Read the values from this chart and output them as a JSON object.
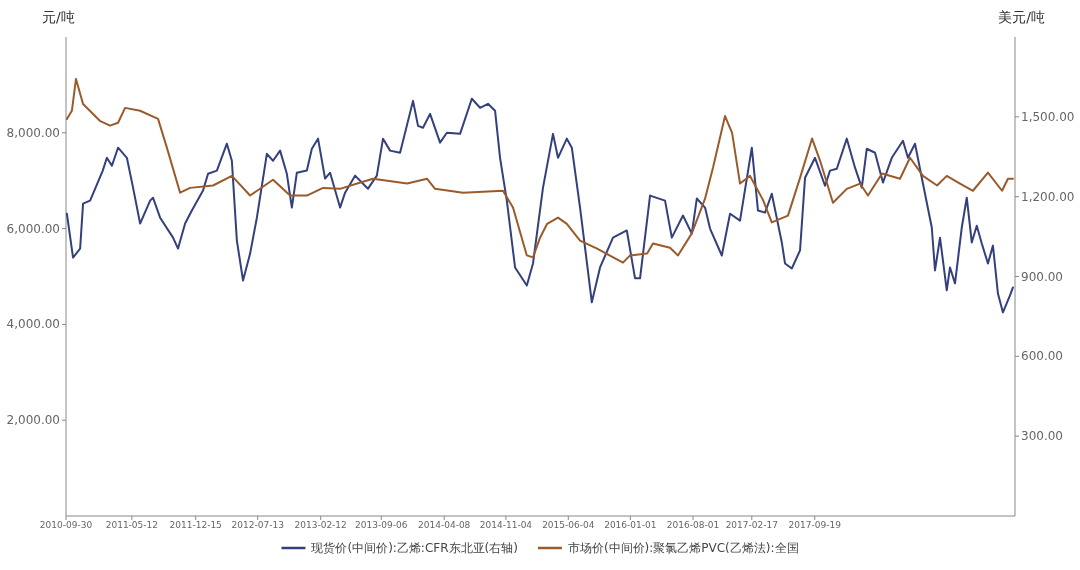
{
  "chart_data": {
    "type": "line",
    "ylabel": "元/吨",
    "y2label": "美元/吨",
    "xlim": [
      "2010-09-30",
      "2019-08-01"
    ],
    "ylim": [
      0,
      10000
    ],
    "y2lim": [
      0,
      1800
    ],
    "xticks": [
      "2010-09-30",
      "2011-05-12",
      "2011-12-15",
      "2012-07-13",
      "2013-02-12",
      "2013-09-06",
      "2014-04-08",
      "2014-11-04",
      "2015-06-04",
      "2016-01-01",
      "2016-08-01",
      "2017-02-17",
      "2017-09-19"
    ],
    "yticks": [
      {
        "value": 2000,
        "label": "2,000.00"
      },
      {
        "value": 4000,
        "label": "4,000.00"
      },
      {
        "value": 6000,
        "label": "6,000.00"
      },
      {
        "value": 8000,
        "label": "8,000.00"
      }
    ],
    "y2ticks": [
      {
        "value": 300,
        "label": "300.00"
      },
      {
        "value": 600,
        "label": "600.00"
      },
      {
        "value": 900,
        "label": "900.00"
      },
      {
        "value": 1200,
        "label": "1,200.00"
      },
      {
        "value": 1500,
        "label": "1,500.00"
      }
    ],
    "legend": "bottom",
    "series": [
      {
        "name": "现货价(中间价):乙烯:CFR东北亚(右轴)",
        "color": "#34407d",
        "axis": "y2",
        "x": [
          "2010-10-03",
          "2010-10-24",
          "2010-11-17",
          "2010-11-27",
          "2010-12-21",
          "2011-02-02",
          "2011-02-16",
          "2011-03-05",
          "2011-03-26",
          "2011-04-25",
          "2011-05-16",
          "2011-06-09",
          "2011-07-13",
          "2011-07-23",
          "2011-08-16",
          "2011-09-29",
          "2011-10-16",
          "2011-11-09",
          "2011-12-02",
          "2012-01-09",
          "2012-01-26",
          "2012-02-25",
          "2012-03-30",
          "2012-04-16",
          "2012-05-03",
          "2012-05-24",
          "2012-06-17",
          "2012-07-10",
          "2012-08-13",
          "2012-09-03",
          "2012-09-27",
          "2012-10-20",
          "2012-11-06",
          "2012-11-23",
          "2012-12-27",
          "2013-01-13",
          "2013-02-03",
          "2013-02-27",
          "2013-03-16",
          "2013-04-19",
          "2013-05-06",
          "2013-06-09",
          "2013-07-23",
          "2013-08-22",
          "2013-09-12",
          "2013-10-06",
          "2013-11-09",
          "2013-12-23",
          "2014-01-09",
          "2014-01-26",
          "2014-02-19",
          "2014-03-25",
          "2014-04-17",
          "2014-06-01",
          "2014-07-11",
          "2014-08-08",
          "2014-09-04",
          "2014-09-28",
          "2014-10-15",
          "2014-11-07",
          "2014-12-05",
          "2015-01-14",
          "2015-02-04",
          "2015-03-10",
          "2015-04-13",
          "2015-04-30",
          "2015-05-30",
          "2015-06-16",
          "2015-07-14",
          "2015-08-23",
          "2015-09-20",
          "2015-11-03",
          "2015-12-20",
          "2016-01-17",
          "2016-02-03",
          "2016-03-08",
          "2016-04-28",
          "2016-05-21",
          "2016-06-28",
          "2016-07-28",
          "2016-08-14",
          "2016-09-11",
          "2016-09-28",
          "2016-11-07",
          "2016-12-05",
          "2017-01-08",
          "2017-02-17",
          "2017-03-10",
          "2017-04-03",
          "2017-04-26",
          "2017-05-30",
          "2017-06-10",
          "2017-07-03",
          "2017-07-31",
          "2017-08-17",
          "2017-09-20",
          "2017-10-24",
          "2017-11-10",
          "2017-12-03",
          "2018-01-06",
          "2018-02-03",
          "2018-02-26",
          "2018-03-15",
          "2018-04-12",
          "2018-05-09",
          "2018-06-08",
          "2018-07-16",
          "2018-08-02",
          "2018-08-26",
          "2018-09-18",
          "2018-10-22",
          "2018-11-02",
          "2018-11-19",
          "2018-12-12",
          "2018-12-23",
          "2019-01-09",
          "2019-02-01",
          "2019-02-18",
          "2019-03-07",
          "2019-03-24",
          "2019-04-10",
          "2019-05-01",
          "2019-05-18",
          "2019-06-04",
          "2019-06-21",
          "2019-07-15",
          "2019-07-25"
        ],
        "values": [
          1136,
          971,
          1005,
          1174,
          1185,
          1298,
          1346,
          1316,
          1384,
          1346,
          1234,
          1099,
          1185,
          1196,
          1121,
          1046,
          1005,
          1099,
          1148,
          1223,
          1286,
          1298,
          1399,
          1335,
          1035,
          885,
          986,
          1121,
          1361,
          1335,
          1373,
          1286,
          1159,
          1290,
          1298,
          1380,
          1418,
          1268,
          1290,
          1159,
          1215,
          1279,
          1230,
          1279,
          1418,
          1373,
          1365,
          1560,
          1466,
          1459,
          1511,
          1403,
          1440,
          1436,
          1568,
          1534,
          1549,
          1523,
          1346,
          1185,
          934,
          866,
          949,
          1234,
          1436,
          1346,
          1418,
          1384,
          1159,
          803,
          934,
          1046,
          1073,
          893,
          893,
          1204,
          1185,
          1046,
          1129,
          1061,
          1193,
          1159,
          1080,
          979,
          1136,
          1110,
          1384,
          1148,
          1140,
          1211,
          1028,
          949,
          930,
          998,
          1271,
          1346,
          1241,
          1298,
          1305,
          1418,
          1309,
          1234,
          1380,
          1365,
          1253,
          1346,
          1410,
          1346,
          1399,
          1271,
          1084,
          923,
          1046,
          848,
          934,
          874,
          1084,
          1196,
          1028,
          1091,
          1024,
          949,
          1016,
          836,
          765,
          829,
          859
        ]
      },
      {
        "name": "市场价(中间价):聚氯乙烯PVC(乙烯法):全国",
        "color": "#9a5b2c",
        "x": [
          "2010-10-03",
          "2010-10-20",
          "2010-11-03",
          "2010-11-27",
          "2011-01-23",
          "2011-02-27",
          "2011-03-26",
          "2011-04-19",
          "2011-06-09",
          "2011-08-09",
          "2011-09-08",
          "2011-10-23",
          "2011-11-26",
          "2012-02-12",
          "2012-04-16",
          "2012-06-17",
          "2012-09-03",
          "2012-10-31",
          "2012-12-27",
          "2013-02-20",
          "2013-04-19",
          "2013-06-16",
          "2013-08-09",
          "2013-12-03",
          "2014-02-09",
          "2014-03-08",
          "2014-06-11",
          "2014-10-25",
          "2014-11-28",
          "2015-01-14",
          "2015-02-04",
          "2015-02-28",
          "2015-03-24",
          "2015-04-30",
          "2015-05-30",
          "2015-07-14",
          "2015-09-10",
          "2015-12-07",
          "2015-12-31",
          "2016-02-27",
          "2016-03-18",
          "2016-05-15",
          "2016-06-11",
          "2016-07-28",
          "2016-09-11",
          "2016-10-08",
          "2016-11-18",
          "2016-12-12",
          "2017-01-08",
          "2017-02-11",
          "2017-03-27",
          "2017-04-26",
          "2017-06-20",
          "2017-07-31",
          "2017-09-10",
          "2017-10-07",
          "2017-11-20",
          "2018-01-06",
          "2018-02-20",
          "2018-03-19",
          "2018-05-06",
          "2018-07-06",
          "2018-08-09",
          "2018-09-22",
          "2018-11-09",
          "2018-12-12",
          "2019-01-26",
          "2019-03-11",
          "2019-05-01",
          "2019-06-18",
          "2019-07-08",
          "2019-07-25"
        ],
        "values": [
          8290,
          8460,
          9125,
          8600,
          8250,
          8150,
          8210,
          8520,
          8460,
          8290,
          7690,
          6750,
          6850,
          6900,
          7100,
          6690,
          7020,
          6690,
          6690,
          6850,
          6830,
          6940,
          7040,
          6940,
          7040,
          6830,
          6750,
          6790,
          6440,
          5440,
          5400,
          5810,
          6100,
          6230,
          6100,
          5750,
          5580,
          5290,
          5440,
          5480,
          5690,
          5600,
          5440,
          5900,
          6625,
          7270,
          8350,
          8000,
          6940,
          7100,
          6600,
          6130,
          6270,
          7060,
          7880,
          7420,
          6540,
          6830,
          6940,
          6690,
          7150,
          7040,
          7480,
          7100,
          6900,
          7100,
          6940,
          6790,
          7170,
          6790,
          7040,
          7040
        ]
      }
    ]
  }
}
